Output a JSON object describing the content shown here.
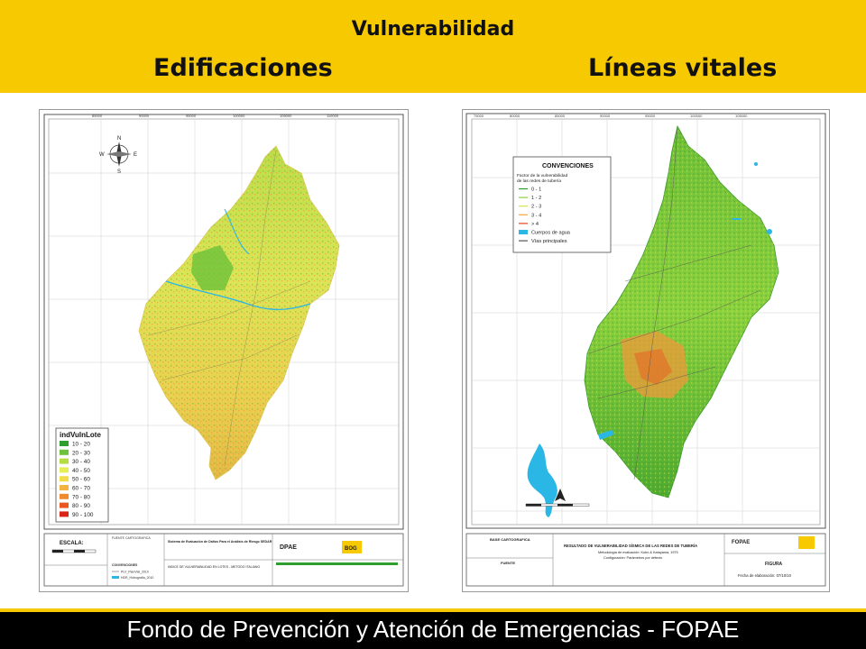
{
  "header": {
    "title": "Vulnerabilidad",
    "left_subtitle": "Edificaciones",
    "right_subtitle": "Líneas vitales"
  },
  "left_map": {
    "legend_title": "indVulnLote",
    "legend_items": [
      {
        "label": "10 - 20",
        "color": "#2e9e2e"
      },
      {
        "label": "20 - 30",
        "color": "#6cc23a"
      },
      {
        "label": "30 - 40",
        "color": "#b5dd42"
      },
      {
        "label": "40 - 50",
        "color": "#e6ee55"
      },
      {
        "label": "50 - 60",
        "color": "#f2dc4a"
      },
      {
        "label": "60 - 70",
        "color": "#f3b340"
      },
      {
        "label": "70 - 80",
        "color": "#ef8a2e"
      },
      {
        "label": "80 - 90",
        "color": "#e8571f"
      },
      {
        "label": "90 - 100",
        "color": "#d92416"
      }
    ],
    "top_ticks": [
      "85000",
      "90000",
      "95000",
      "100000",
      "105000",
      "110000"
    ],
    "compass": {
      "n": "N",
      "s": "S",
      "e": "E",
      "w": "W"
    },
    "escala_label": "ESCALA:",
    "convenciones_label": "CONVENCIONES",
    "conv_items": [
      "PLV_PlanVial_2010",
      "HDR_Hidrografia_2010"
    ],
    "fuente_label": "FUENTE CARTOGRAFICA",
    "system_title": "Sistema de Evaluación de Daños Para el Análisis de Riesgo SEDAR",
    "map_caption": "INDICE DE VULNERABILIDAD EN LOTES - METODO ITALIANO",
    "logo_dpae": "DPAE",
    "logo_bog": "BOG"
  },
  "right_map": {
    "legend_title": "CONVENCIONES",
    "legend_subtitle_1": "Factor de la vulnerabilidad",
    "legend_subtitle_2": "de las redes de tubería",
    "legend_items": [
      {
        "label": "0 - 1",
        "color": "#2f9a2f"
      },
      {
        "label": "1 - 2",
        "color": "#8cd13e"
      },
      {
        "label": "2 - 3",
        "color": "#d6e64a"
      },
      {
        "label": "3 - 4",
        "color": "#f2a53a"
      },
      {
        "label": "> 4",
        "color": "#e2441c"
      },
      {
        "label": "Cuerpos de agua",
        "color": "#2bb7e6"
      },
      {
        "label": "Vías principales",
        "color": "#555555"
      }
    ],
    "top_ticks": [
      "75000",
      "80000",
      "85000",
      "90000",
      "95000",
      "100000",
      "105000"
    ],
    "base_label": "BASE CARTOGRAFICA",
    "fuente_label": "FUENTE",
    "result_title": "RESULTADO DE VULNERABILIDAD SÍSMICA DE LAS REDES DE TUBERÍA",
    "method": "Metodología de evaluación: Kubo & Katayama, 1975",
    "config": "Configuración: Parámetros por defecto",
    "figura_label": "FIGURA",
    "fecha": "Fecha de elaboración: 07/10/10",
    "logo_fopae": "FOPAE"
  },
  "footer": {
    "text": "Fondo de Prevención y Atención de Emergencias - FOPAE"
  },
  "colors": {
    "header_bg": "#f7c900",
    "footer_bg": "#000000",
    "water": "#2bb7e6"
  }
}
